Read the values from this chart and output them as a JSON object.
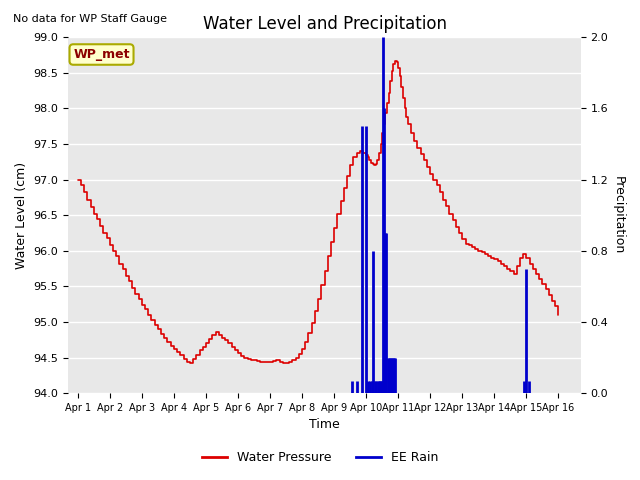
{
  "title": "Water Level and Precipitation",
  "subtitle": "No data for WP Staff Gauge",
  "ylabel_left": "Water Level (cm)",
  "ylabel_right": "Precipitation",
  "xlabel": "Time",
  "legend_label1": "Water Pressure",
  "legend_label2": "EE Rain",
  "legend_label_box": "WP_met",
  "ylim_left": [
    94.0,
    99.0
  ],
  "ylim_right": [
    0.0,
    2.0
  ],
  "bg_color": "#e8e8e8",
  "water_pressure_color": "#dd0000",
  "rain_color": "#0000cc",
  "water_pressure_x": [
    0.0,
    0.1,
    0.2,
    0.3,
    0.4,
    0.5,
    0.6,
    0.7,
    0.8,
    0.9,
    1.0,
    1.1,
    1.2,
    1.3,
    1.4,
    1.5,
    1.6,
    1.7,
    1.8,
    1.9,
    2.0,
    2.1,
    2.2,
    2.3,
    2.4,
    2.5,
    2.6,
    2.7,
    2.8,
    2.9,
    3.0,
    3.1,
    3.2,
    3.3,
    3.4,
    3.5,
    3.6,
    3.7,
    3.8,
    3.9,
    4.0,
    4.1,
    4.2,
    4.3,
    4.4,
    4.5,
    4.6,
    4.7,
    4.8,
    4.9,
    5.0,
    5.1,
    5.2,
    5.3,
    5.4,
    5.5,
    5.6,
    5.7,
    5.8,
    5.9,
    6.0,
    6.1,
    6.2,
    6.3,
    6.4,
    6.5,
    6.6,
    6.7,
    6.8,
    6.9,
    7.0,
    7.1,
    7.2,
    7.3,
    7.4,
    7.5,
    7.6,
    7.7,
    7.8,
    7.9,
    8.0,
    8.1,
    8.2,
    8.3,
    8.4,
    8.5,
    8.6,
    8.7,
    8.8,
    8.9,
    9.0,
    9.05,
    9.1,
    9.15,
    9.2,
    9.25,
    9.3,
    9.35,
    9.4,
    9.45,
    9.5,
    9.55,
    9.6,
    9.65,
    9.7,
    9.75,
    9.8,
    9.85,
    9.9,
    9.95,
    10.0,
    10.05,
    10.1,
    10.15,
    10.2,
    10.25,
    10.3,
    10.4,
    10.5,
    10.6,
    10.7,
    10.8,
    10.9,
    11.0,
    11.1,
    11.2,
    11.3,
    11.4,
    11.5,
    11.6,
    11.7,
    11.8,
    11.9,
    12.0,
    12.1,
    12.2,
    12.3,
    12.4,
    12.5,
    12.6,
    12.7,
    12.8,
    12.9,
    13.0,
    13.1,
    13.2,
    13.3,
    13.4,
    13.5,
    13.6,
    13.7,
    13.8,
    13.9,
    14.0,
    14.1,
    14.2,
    14.3,
    14.4,
    14.5,
    14.6,
    14.7,
    14.8,
    14.9,
    15.0
  ],
  "water_pressure_y": [
    97.0,
    96.92,
    96.82,
    96.72,
    96.62,
    96.52,
    96.45,
    96.35,
    96.25,
    96.18,
    96.08,
    96.0,
    95.92,
    95.82,
    95.75,
    95.65,
    95.58,
    95.48,
    95.4,
    95.32,
    95.24,
    95.18,
    95.1,
    95.03,
    94.96,
    94.9,
    94.83,
    94.78,
    94.72,
    94.66,
    94.62,
    94.58,
    94.53,
    94.48,
    94.44,
    94.42,
    94.48,
    94.54,
    94.6,
    94.65,
    94.7,
    94.76,
    94.82,
    94.86,
    94.82,
    94.78,
    94.74,
    94.7,
    94.65,
    94.6,
    94.56,
    94.52,
    94.5,
    94.48,
    94.47,
    94.46,
    94.45,
    94.44,
    94.44,
    94.44,
    94.44,
    94.45,
    94.46,
    94.44,
    94.43,
    94.43,
    94.44,
    94.46,
    94.5,
    94.55,
    94.62,
    94.72,
    94.84,
    94.98,
    95.15,
    95.32,
    95.52,
    95.72,
    95.92,
    96.12,
    96.32,
    96.52,
    96.7,
    96.88,
    97.05,
    97.2,
    97.32,
    97.38,
    97.4,
    97.38,
    97.35,
    97.32,
    97.28,
    97.24,
    97.22,
    97.2,
    97.22,
    97.28,
    97.38,
    97.5,
    97.65,
    97.78,
    97.93,
    98.08,
    98.22,
    98.38,
    98.52,
    98.63,
    98.67,
    98.65,
    98.57,
    98.45,
    98.3,
    98.15,
    98.0,
    97.88,
    97.78,
    97.65,
    97.55,
    97.45,
    97.36,
    97.27,
    97.18,
    97.08,
    97.0,
    96.92,
    96.82,
    96.72,
    96.63,
    96.52,
    96.43,
    96.33,
    96.25,
    96.17,
    96.1,
    96.08,
    96.05,
    96.03,
    96.0,
    95.98,
    95.95,
    95.93,
    95.9,
    95.88,
    95.85,
    95.82,
    95.78,
    95.75,
    95.72,
    95.68,
    95.78,
    95.9,
    95.95,
    95.9,
    95.82,
    95.75,
    95.68,
    95.6,
    95.53,
    95.46,
    95.38,
    95.3,
    95.22,
    95.1
  ],
  "rain_bars": [
    [
      8.55,
      0.07
    ],
    [
      8.72,
      0.07
    ],
    [
      8.88,
      1.5
    ],
    [
      9.0,
      1.5
    ],
    [
      9.07,
      0.07
    ],
    [
      9.12,
      0.07
    ],
    [
      9.17,
      0.07
    ],
    [
      9.22,
      0.8
    ],
    [
      9.27,
      0.07
    ],
    [
      9.32,
      0.07
    ],
    [
      9.37,
      0.07
    ],
    [
      9.4,
      0.07
    ],
    [
      9.43,
      0.07
    ],
    [
      9.47,
      0.07
    ],
    [
      9.5,
      0.07
    ],
    [
      9.53,
      2.0
    ],
    [
      9.57,
      1.6
    ],
    [
      9.6,
      0.9
    ],
    [
      9.63,
      0.9
    ],
    [
      9.67,
      0.2
    ],
    [
      9.7,
      0.2
    ],
    [
      9.73,
      0.2
    ],
    [
      9.77,
      0.2
    ],
    [
      9.8,
      0.2
    ],
    [
      9.83,
      0.2
    ],
    [
      9.87,
      0.2
    ],
    [
      9.9,
      0.2
    ],
    [
      13.93,
      0.07
    ],
    [
      14.0,
      0.7
    ],
    [
      14.07,
      0.07
    ]
  ],
  "xtick_labels": [
    "Apr 1",
    "Apr 2",
    "Apr 3",
    "Apr 4",
    "Apr 5",
    "Apr 6",
    "Apr 7",
    "Apr 8",
    "Apr 9",
    "Apr 10",
    "Apr 11",
    "Apr 12",
    "Apr 13",
    "Apr 14",
    "Apr 15",
    "Apr 16"
  ],
  "xtick_positions": [
    0,
    1,
    2,
    3,
    4,
    5,
    6,
    7,
    8,
    9,
    10,
    11,
    12,
    13,
    14,
    15
  ]
}
